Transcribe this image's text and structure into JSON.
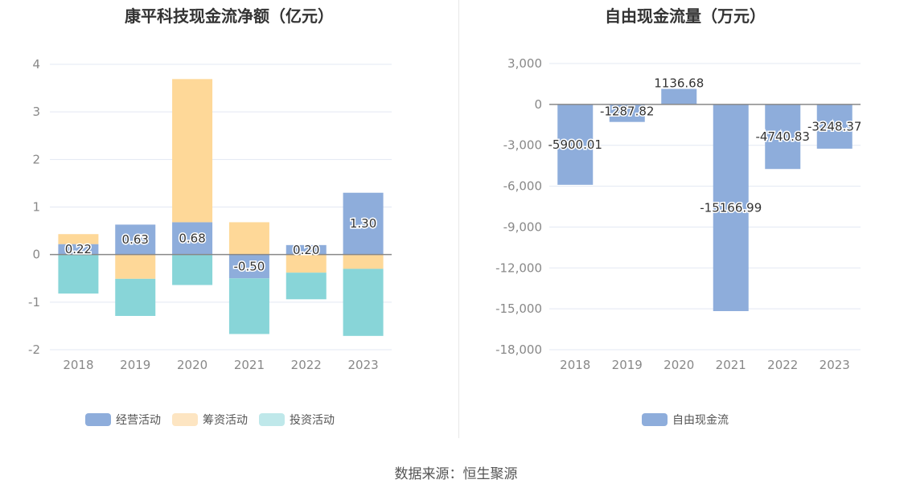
{
  "chart_data": [
    {
      "type": "bar",
      "stacked": true,
      "title": "康平科技现金流净额（亿元）",
      "categories": [
        "2018",
        "2019",
        "2020",
        "2021",
        "2022",
        "2023"
      ],
      "series": [
        {
          "name": "经营活动",
          "color": "#8eaddb",
          "values": [
            0.22,
            0.63,
            0.68,
            -0.5,
            0.2,
            1.3
          ],
          "labels": [
            "0.22",
            "0.63",
            "0.68",
            "-0.50",
            "0.20",
            "1.30"
          ]
        },
        {
          "name": "筹资活动",
          "color": "#fed898",
          "legend_color": "#fde5c2",
          "values": [
            0.21,
            -0.51,
            3.01,
            0.68,
            -0.38,
            -0.3
          ]
        },
        {
          "name": "投资活动",
          "color": "#88d5d8",
          "legend_color": "#bfe8ea",
          "values": [
            -0.82,
            -0.78,
            -0.64,
            -1.17,
            -0.56,
            -1.41
          ]
        }
      ],
      "yticks": [
        "4",
        "3",
        "2",
        "1",
        "0",
        "-1",
        "-2"
      ],
      "ylim": [
        -2,
        4
      ],
      "grid": true,
      "legend": "bottom"
    },
    {
      "type": "bar",
      "title": "自由现金流量（万元）",
      "categories": [
        "2018",
        "2019",
        "2020",
        "2021",
        "2022",
        "2023"
      ],
      "series": [
        {
          "name": "自由现金流",
          "color": "#8eaddb",
          "values": [
            -5900.01,
            -1287.82,
            1136.68,
            -15166.99,
            -4740.83,
            -3248.37
          ],
          "labels": [
            "-5900.01",
            "-1287.82",
            "1136.68",
            "-15166.99",
            "-4740.83",
            "-3248.37"
          ]
        }
      ],
      "yticks": [
        "3,000",
        "0",
        "-3,000",
        "-6,000",
        "-9,000",
        "-12,000",
        "-15,000",
        "-18,000"
      ],
      "ylim": [
        -18000,
        3000
      ],
      "grid": true,
      "legend": "bottom"
    }
  ],
  "source": "数据来源：恒生聚源"
}
